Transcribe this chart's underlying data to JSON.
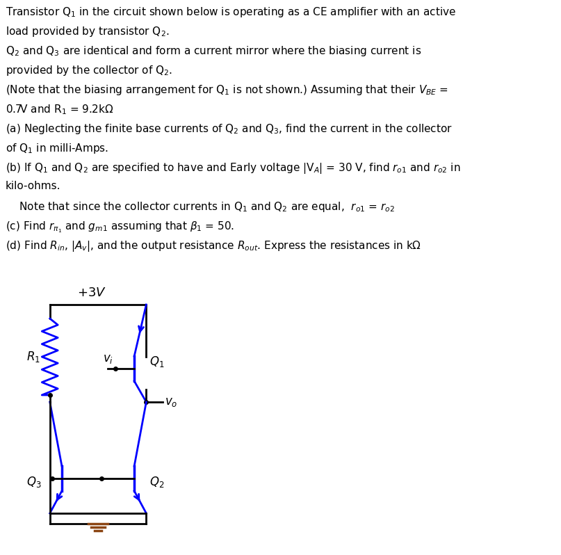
{
  "title_text": [
    "Transistor Q₁ in the circuit shown below is operating as a CE amplifier with an active",
    "load provided by transistor Q₂.",
    "Q₂ and Q₃ are identical and form a current mirror where the biasing current is",
    "provided by the collector of Q₂.",
    "(Note that the biasing arrangement for Q₁ is not shown.) Assuming that their Vᴃᴇ =",
    "0.7V and R₁ = 9.2kΩ",
    "(a) Neglecting the finite base currents of Q₂ and Q₃, find the current in the collector",
    "of Q₁ in milli-Amps.",
    "(b) If Q₁ and Q₂ are specified to have and Early voltage |Vₐ| = 30 V, find rₒ₁ and rₒ₂ in",
    "kilo-ohms.",
    "    Note that since the collector currents in Q₁ and Q₂ are equal,  rₒ₁ = rₒ₂",
    "(c) Find rπ₁ and gₘ₁ assuming that β₁ = 50.",
    "(d) Find Rᴵₙ, |Aᵥ|, and the output resistance Rₒᵁₜ. Express the resistances in kΩ"
  ],
  "bg_color": "#ffffff",
  "text_color": "#000000",
  "circuit_color": "#0000ff",
  "wire_color": "#000000",
  "ground_color": "#8B4513"
}
